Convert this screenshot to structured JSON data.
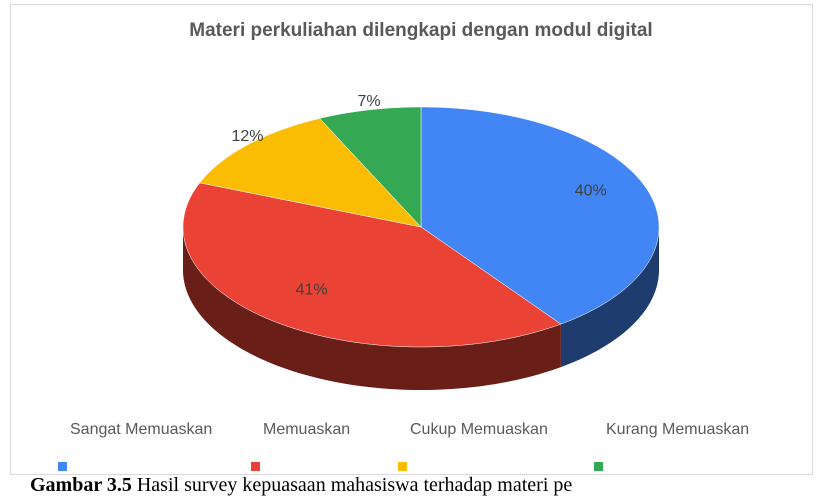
{
  "chart_data": {
    "type": "pie3d",
    "title": "Materi perkuliahan dilengkapi dengan modul digital",
    "categories": [
      "Sangat Memuaskan",
      "Memuaskan",
      "Cukup Memuaskan",
      "Kurang Memuaskan"
    ],
    "values": [
      40,
      41,
      12,
      7
    ],
    "value_labels": [
      "40%",
      "41%",
      "12%",
      "7%"
    ],
    "colors": [
      "#4285f4",
      "#ea4335",
      "#fbbc04",
      "#34a853"
    ],
    "legend": "bottom"
  },
  "caption": {
    "label": "Gambar 3.5",
    "text": "Hasil survey kepuasaan mahasiswa terhadap materi pe"
  }
}
